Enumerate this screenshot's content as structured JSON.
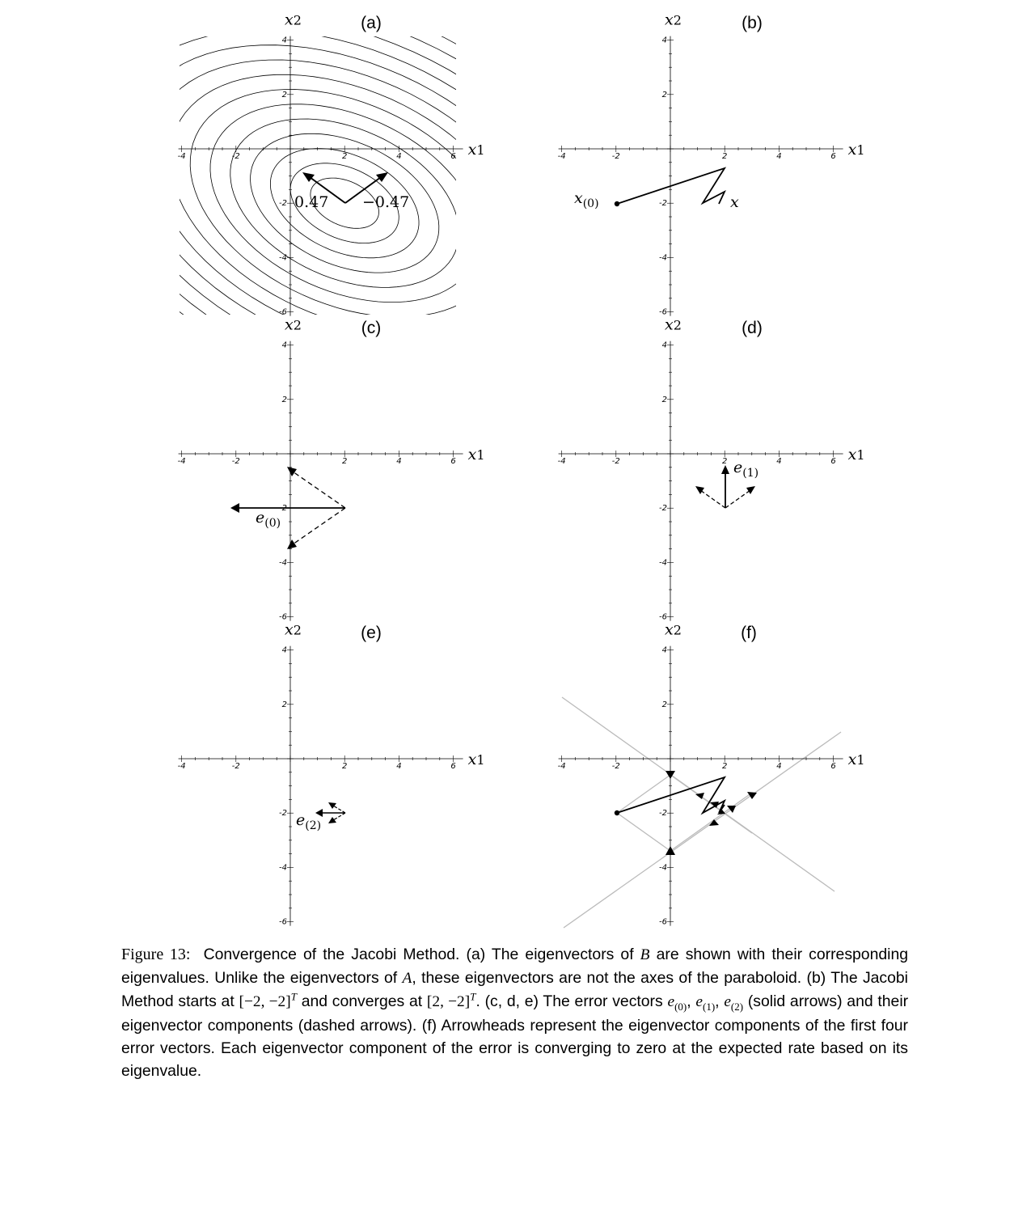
{
  "figure": {
    "panels": [
      {
        "label": "(a)",
        "x_axis_label": "x1",
        "y_axis_label": "x2",
        "annotations": [
          "0.47",
          "−0.47"
        ]
      },
      {
        "label": "(b)",
        "x_axis_label": "x1",
        "y_axis_label": "x2",
        "annotations": [
          "x(0)",
          "x"
        ]
      },
      {
        "label": "(c)",
        "x_axis_label": "x1",
        "y_axis_label": "x2",
        "annotations": [
          "e(0)"
        ]
      },
      {
        "label": "(d)",
        "x_axis_label": "x1",
        "y_axis_label": "x2",
        "annotations": [
          "e(1)"
        ]
      },
      {
        "label": "(e)",
        "x_axis_label": "x1",
        "y_axis_label": "x2",
        "annotations": [
          "e(2)"
        ]
      },
      {
        "label": "(f)",
        "x_axis_label": "x1",
        "y_axis_label": "x2",
        "annotations": []
      }
    ],
    "x_ticks": [
      "-4",
      "-2",
      "2",
      "4",
      "6"
    ],
    "y_ticks": [
      "4",
      "2",
      "-2",
      "-4",
      "-6"
    ],
    "x_range": [
      -4,
      6
    ],
    "y_range": [
      -6,
      4
    ],
    "start_point": [
      -2,
      -2
    ],
    "solution_point": [
      2,
      -2
    ],
    "eigenvalues": [
      0.47,
      -0.47
    ],
    "jacobi_iterates": [
      [
        -2,
        -2
      ],
      [
        2,
        -0.667
      ],
      [
        1.333,
        -2
      ],
      [
        2,
        -1.778
      ],
      [
        1.778,
        -2
      ],
      [
        2,
        -1.926
      ]
    ],
    "colors": {
      "ink": "#000000",
      "guide": "#bbbbbb"
    }
  },
  "caption": {
    "figure_number": "Figure 13:",
    "title": "Convergence of the Jacobi Method.",
    "p1": "(a) The eigenvectors of",
    "sym_B": "B",
    "p2": "are shown with their corresponding eigenvalues. Unlike the eigenvectors of",
    "sym_A": "A",
    "p3": ", these eigenvectors are not the axes of the paraboloid. (b) The Jacobi Method starts at",
    "start_vec": "[−2, −2]",
    "sup_T": "T",
    "p4": "and converges at",
    "end_vec": "[2, −2]",
    "p5": ". (c, d, e) The error vectors",
    "sym_e": "e",
    "sub0": "(0)",
    "sub1": "(1)",
    "sub2": "(2)",
    "comma": ",",
    "p6": "(solid arrows) and their eigenvector components (dashed arrows). (f) Arrowheads represent the eigenvector components of the first four error vectors. Each eigenvector component of the error is converging to zero at the expected rate based on its eigenvalue."
  }
}
